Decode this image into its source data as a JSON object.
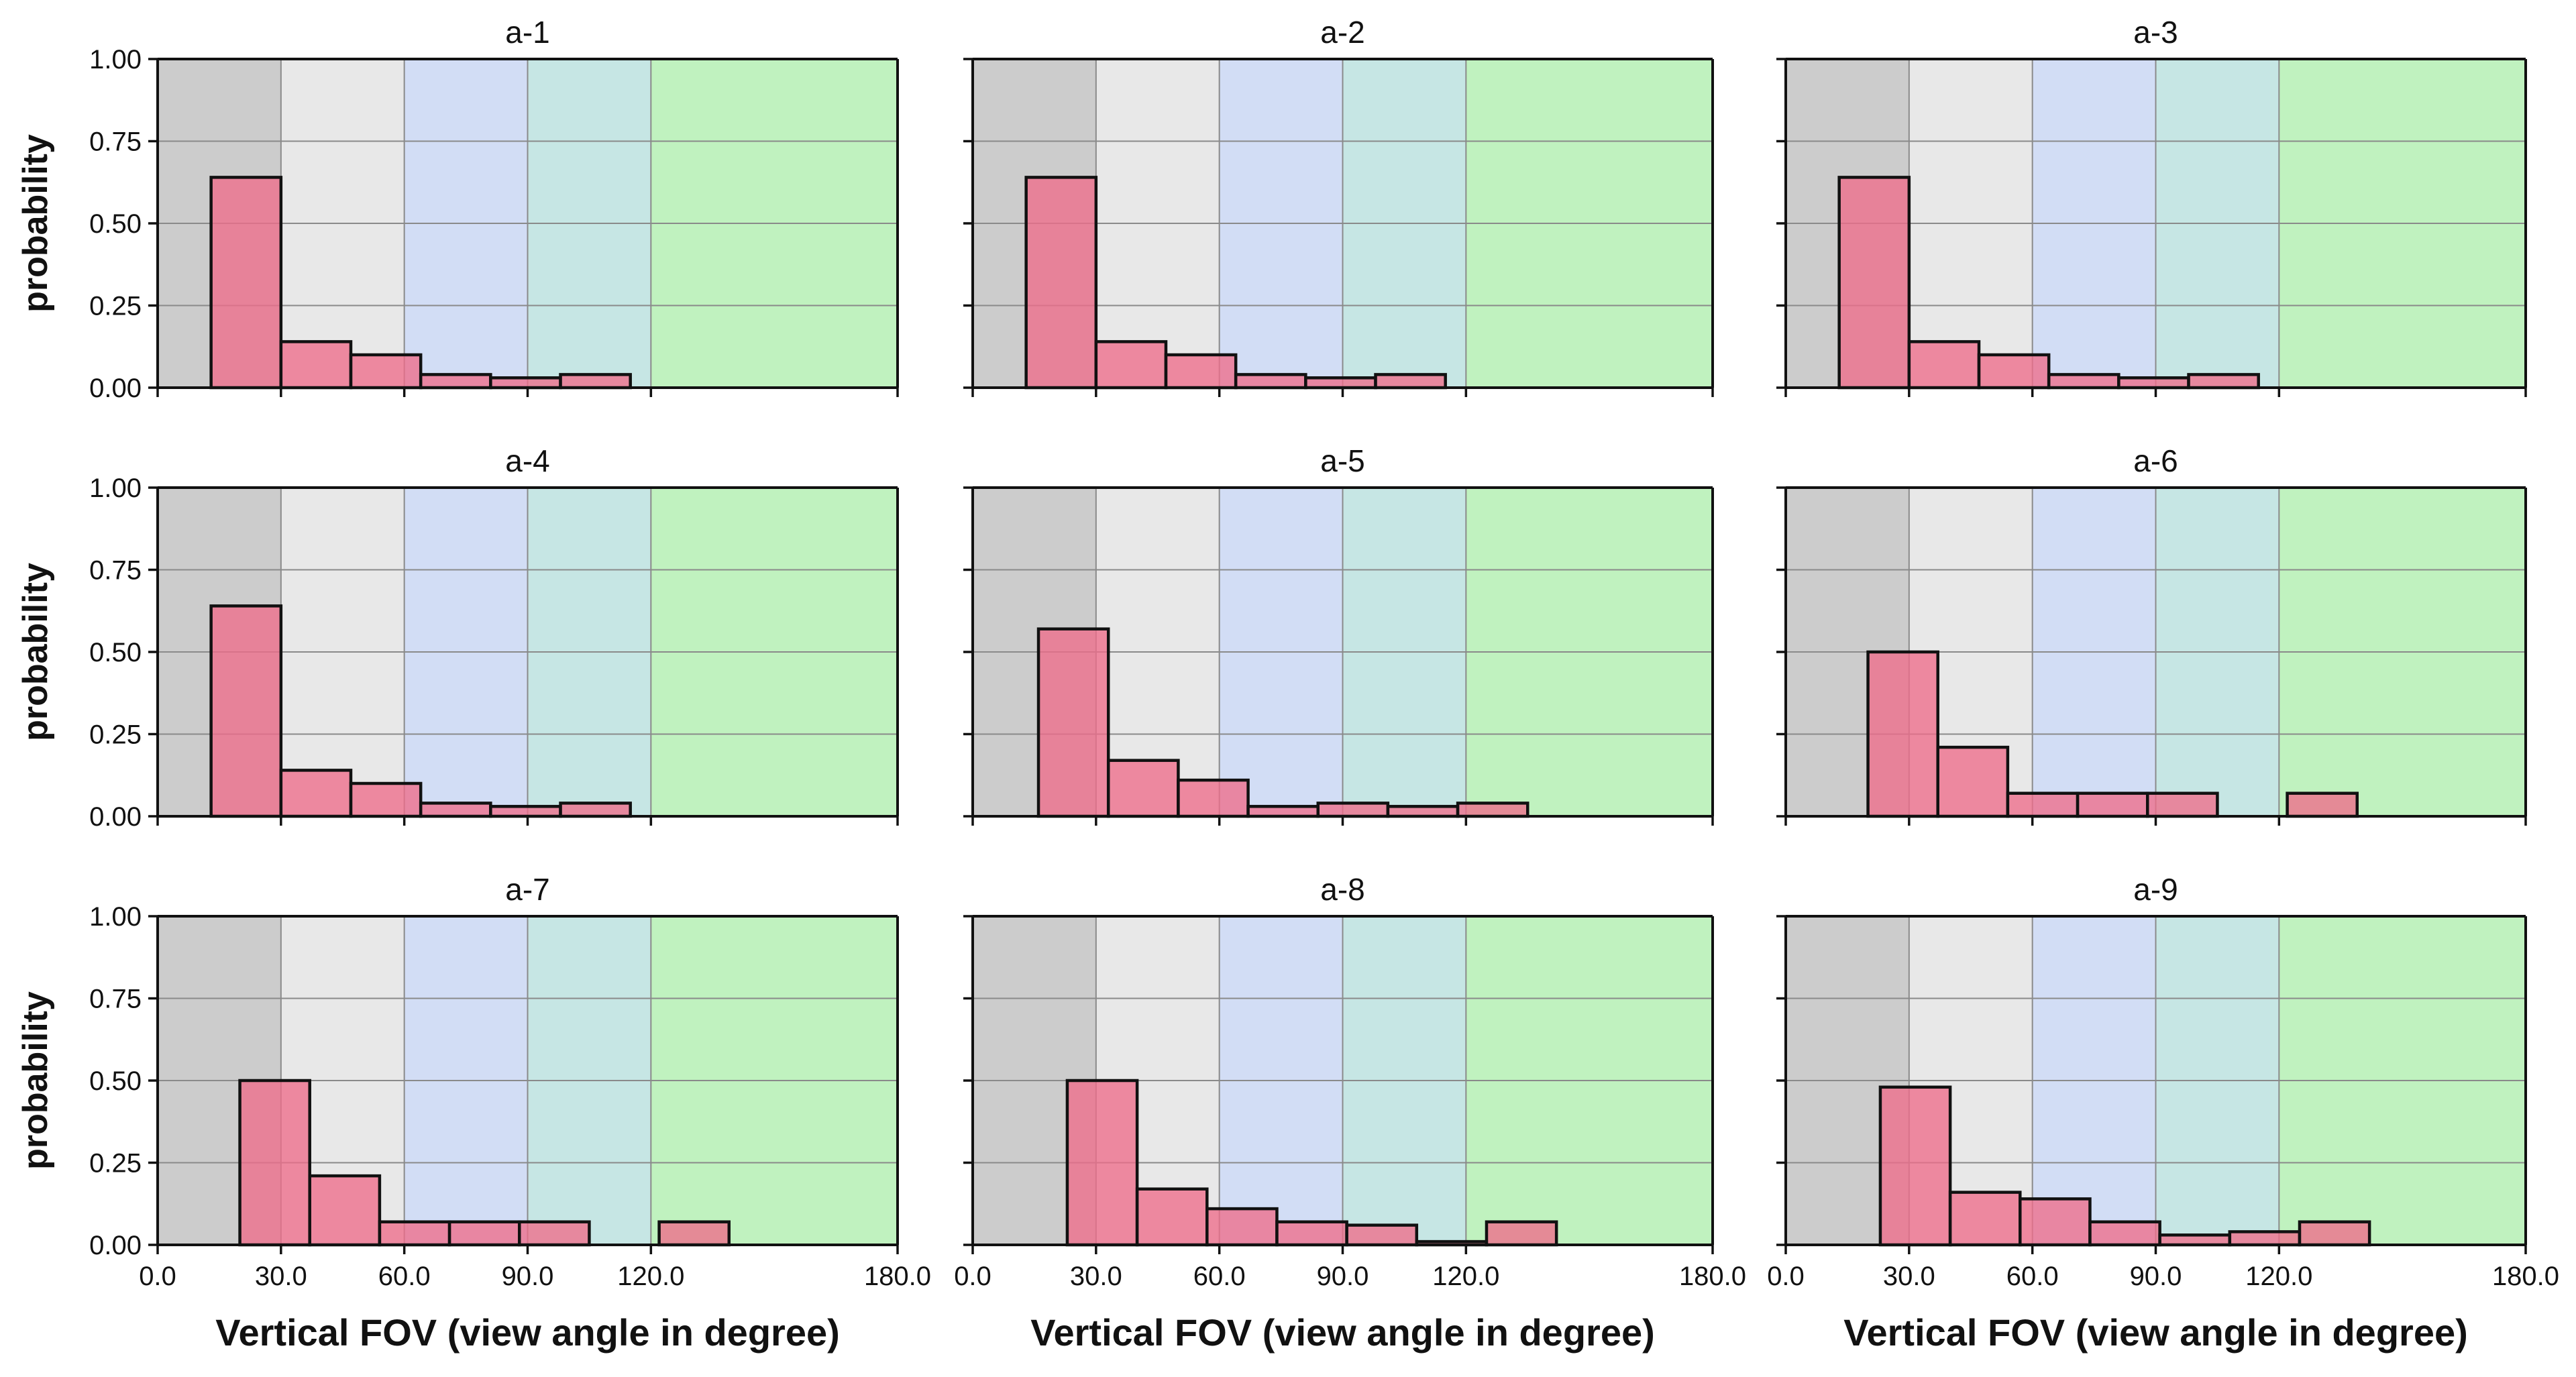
{
  "chart_data": {
    "type": "bar",
    "layout": {
      "rows": 3,
      "cols": 3
    },
    "xlim": [
      0,
      180
    ],
    "ylim": [
      0,
      1
    ],
    "xticks": [
      0,
      30,
      60,
      90,
      120,
      180
    ],
    "xtick_labels": [
      "0.0",
      "30.0",
      "60.0",
      "90.0",
      "120.0",
      "180.0"
    ],
    "yticks": [
      0,
      0.25,
      0.5,
      0.75,
      1.0
    ],
    "ytick_labels": [
      "0.00",
      "0.25",
      "0.50",
      "0.75",
      "1.00"
    ],
    "xlabel": "Vertical FOV (view angle in degree)",
    "ylabel": "probability",
    "bands": [
      {
        "from": 0,
        "to": 30,
        "color": "#cccccc"
      },
      {
        "from": 30,
        "to": 60,
        "color": "#e8e8e8"
      },
      {
        "from": 60,
        "to": 90,
        "color": "#d2ddf5"
      },
      {
        "from": 90,
        "to": 120,
        "color": "#c6e6e4"
      },
      {
        "from": 120,
        "to": 180,
        "color": "#c0f2bf"
      }
    ],
    "bar_color": "#ee6d8a",
    "panels": [
      {
        "title": "a-1",
        "bins": [
          [
            13,
            30,
            0.64
          ],
          [
            30,
            47,
            0.14
          ],
          [
            47,
            64,
            0.1
          ],
          [
            64,
            81,
            0.04
          ],
          [
            81,
            98,
            0.03
          ],
          [
            98,
            115,
            0.04
          ]
        ]
      },
      {
        "title": "a-2",
        "bins": [
          [
            13,
            30,
            0.64
          ],
          [
            30,
            47,
            0.14
          ],
          [
            47,
            64,
            0.1
          ],
          [
            64,
            81,
            0.04
          ],
          [
            81,
            98,
            0.03
          ],
          [
            98,
            115,
            0.04
          ]
        ]
      },
      {
        "title": "a-3",
        "bins": [
          [
            13,
            30,
            0.64
          ],
          [
            30,
            47,
            0.14
          ],
          [
            47,
            64,
            0.1
          ],
          [
            64,
            81,
            0.04
          ],
          [
            81,
            98,
            0.03
          ],
          [
            98,
            115,
            0.04
          ]
        ]
      },
      {
        "title": "a-4",
        "bins": [
          [
            13,
            30,
            0.64
          ],
          [
            30,
            47,
            0.14
          ],
          [
            47,
            64,
            0.1
          ],
          [
            64,
            81,
            0.04
          ],
          [
            81,
            98,
            0.03
          ],
          [
            98,
            115,
            0.04
          ]
        ]
      },
      {
        "title": "a-5",
        "bins": [
          [
            16,
            33,
            0.57
          ],
          [
            33,
            50,
            0.17
          ],
          [
            50,
            67,
            0.11
          ],
          [
            67,
            84,
            0.03
          ],
          [
            84,
            101,
            0.04
          ],
          [
            101,
            118,
            0.03
          ],
          [
            118,
            135,
            0.04
          ]
        ]
      },
      {
        "title": "a-6",
        "bins": [
          [
            20,
            37,
            0.5
          ],
          [
            37,
            54,
            0.21
          ],
          [
            54,
            71,
            0.07
          ],
          [
            71,
            88,
            0.07
          ],
          [
            88,
            105,
            0.07
          ],
          [
            105,
            122,
            0.0
          ],
          [
            122,
            139,
            0.07
          ]
        ]
      },
      {
        "title": "a-7",
        "bins": [
          [
            20,
            37,
            0.5
          ],
          [
            37,
            54,
            0.21
          ],
          [
            54,
            71,
            0.07
          ],
          [
            71,
            88,
            0.07
          ],
          [
            88,
            105,
            0.07
          ],
          [
            105,
            122,
            0.0
          ],
          [
            122,
            139,
            0.07
          ]
        ]
      },
      {
        "title": "a-8",
        "bins": [
          [
            23,
            40,
            0.5
          ],
          [
            40,
            57,
            0.17
          ],
          [
            57,
            74,
            0.11
          ],
          [
            74,
            91,
            0.07
          ],
          [
            91,
            108,
            0.06
          ],
          [
            108,
            125,
            0.01
          ],
          [
            125,
            142,
            0.07
          ]
        ]
      },
      {
        "title": "a-9",
        "bins": [
          [
            23,
            40,
            0.48
          ],
          [
            40,
            57,
            0.16
          ],
          [
            57,
            74,
            0.14
          ],
          [
            74,
            91,
            0.07
          ],
          [
            91,
            108,
            0.03
          ],
          [
            108,
            125,
            0.04
          ],
          [
            125,
            142,
            0.07
          ]
        ]
      }
    ]
  }
}
